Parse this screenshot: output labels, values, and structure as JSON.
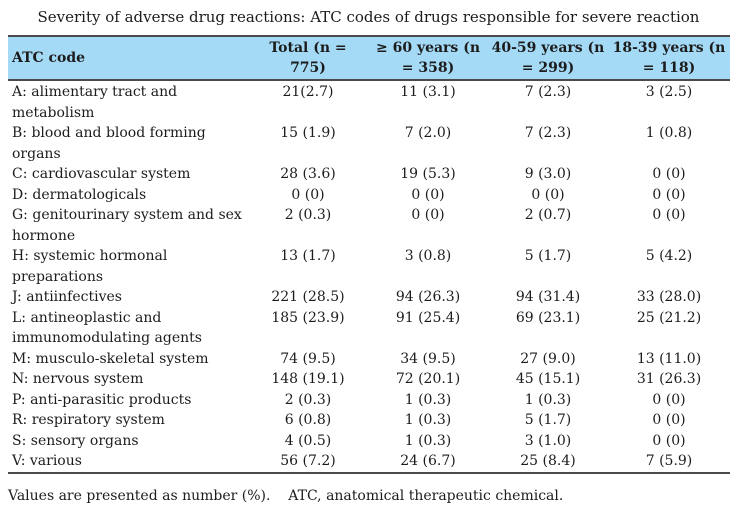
{
  "title": "Severity of adverse drug reactions: ATC codes of drugs responsible for severe reaction",
  "table": {
    "header_bg": "#A4DAF6",
    "border_color": "#4A4A4A",
    "columns": [
      "ATC code",
      "Total (n =\n775)",
      "≥ 60 years (n\n= 358)",
      "40-59 years (n\n= 299)",
      "18-39 years (n\n= 118)"
    ],
    "rows": [
      {
        "label": "A: alimentary tract and\nmetabolism",
        "values": [
          "21(2.7)",
          "11 (3.1)",
          "7 (2.3)",
          "3 (2.5)"
        ]
      },
      {
        "label": "B: blood and blood forming organs",
        "values": [
          "15 (1.9)",
          "7 (2.0)",
          "7 (2.3)",
          "1 (0.8)"
        ]
      },
      {
        "label": "C: cardiovascular system",
        "values": [
          "28 (3.6)",
          "19 (5.3)",
          "9 (3.0)",
          "0 (0)"
        ]
      },
      {
        "label": "D: dermatologicals",
        "values": [
          "0 (0)",
          "0 (0)",
          "0 (0)",
          "0 (0)"
        ]
      },
      {
        "label": "G: genitourinary system and sex\nhormone",
        "values": [
          "2 (0.3)",
          "0 (0)",
          "2 (0.7)",
          "0 (0)"
        ]
      },
      {
        "label": "H: systemic hormonal\npreparations",
        "values": [
          "13 (1.7)",
          "3 (0.8)",
          "5 (1.7)",
          "5 (4.2)"
        ]
      },
      {
        "label": "J: antiinfectives",
        "values": [
          "221 (28.5)",
          "94 (26.3)",
          "94 (31.4)",
          "33 (28.0)"
        ]
      },
      {
        "label": "L: antineoplastic and\nimmunomodulating agents",
        "values": [
          "185 (23.9)",
          "91 (25.4)",
          "69 (23.1)",
          "25 (21.2)"
        ]
      },
      {
        "label": "M: musculo-skeletal system",
        "values": [
          "74 (9.5)",
          "34 (9.5)",
          "27 (9.0)",
          "13 (11.0)"
        ]
      },
      {
        "label": "N: nervous system",
        "values": [
          "148 (19.1)",
          "72 (20.1)",
          "45 (15.1)",
          "31 (26.3)"
        ]
      },
      {
        "label": "P: anti-parasitic products",
        "values": [
          "2 (0.3)",
          "1 (0.3)",
          "1 (0.3)",
          "0 (0)"
        ]
      },
      {
        "label": "R: respiratory system",
        "values": [
          "6 (0.8)",
          "1 (0.3)",
          "5 (1.7)",
          "0 (0)"
        ]
      },
      {
        "label": "S: sensory organs",
        "values": [
          "4 (0.5)",
          "1 (0.3)",
          "3 (1.0)",
          "0 (0)"
        ]
      },
      {
        "label": "V: various",
        "values": [
          "56 (7.2)",
          "24 (6.7)",
          "25 (8.4)",
          "7 (5.9)"
        ]
      }
    ]
  },
  "footnote": "Values are presented as number (%).    ATC, anatomical therapeutic chemical."
}
